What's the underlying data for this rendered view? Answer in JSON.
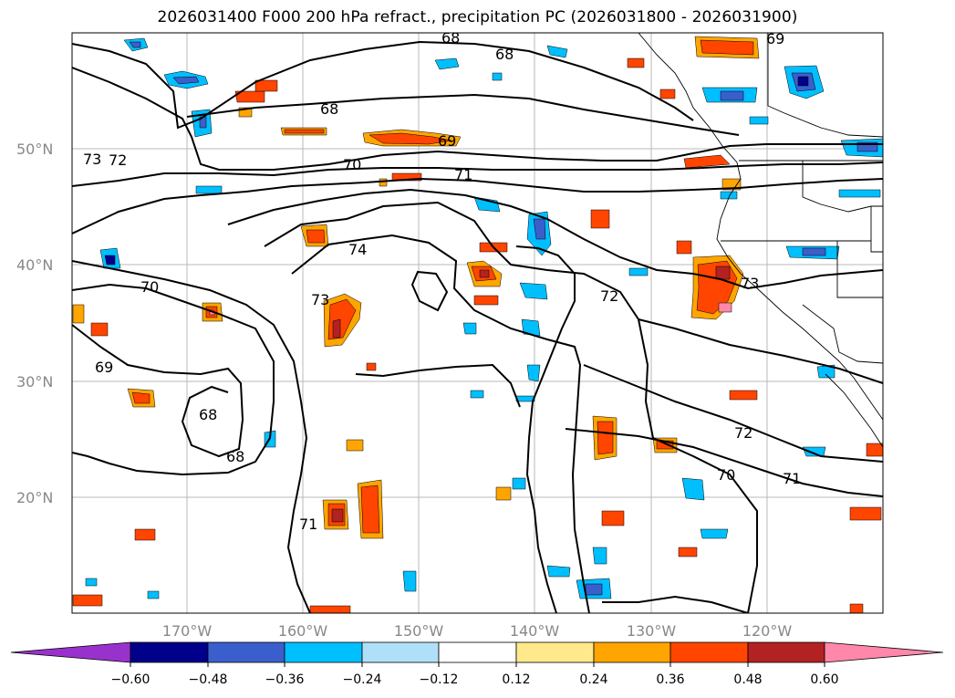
{
  "title": "2026031400 F000 200 hPa refract., precipitation PC (2026031800 - 2026031900)",
  "map": {
    "lat_labels": [
      "50°N",
      "40°N",
      "30°N",
      "20°N"
    ],
    "lon_labels": [
      "170°W",
      "160°W",
      "150°W",
      "140°W",
      "130°W",
      "120°W"
    ],
    "contour_labels": [
      "68",
      "68",
      "68",
      "69",
      "70",
      "71",
      "73",
      "72",
      "74",
      "70",
      "73",
      "72",
      "73",
      "69",
      "68",
      "68",
      "71",
      "70",
      "71",
      "72",
      "69"
    ]
  },
  "colorbar": {
    "tick_labels": [
      "−0.60",
      "−0.48",
      "−0.36",
      "−0.24",
      "−0.12",
      "0.12",
      "0.24",
      "0.36",
      "0.48",
      "0.60"
    ],
    "colors": [
      "#9932cc",
      "#00008b",
      "#3a5fcd",
      "#00bfff",
      "#b0e0f8",
      "#ffffff",
      "#ffe98c",
      "#ffa500",
      "#ff4500",
      "#b22222",
      "#ff88aa"
    ]
  }
}
